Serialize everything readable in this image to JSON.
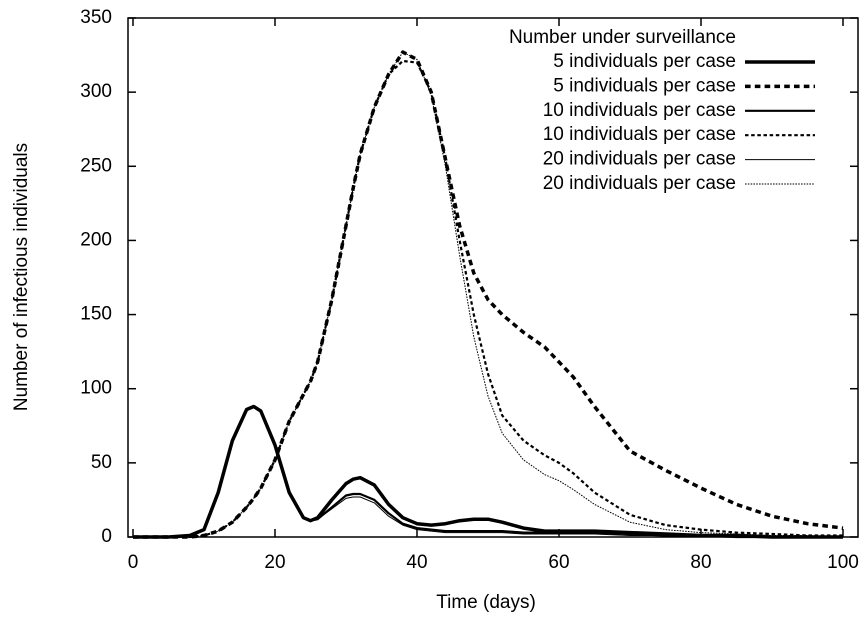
{
  "chart_data": {
    "type": "line",
    "xlabel": "Time (days)",
    "ylabel": "Number of infectious individuals",
    "legend_title": "Number under surveillance",
    "legend": "upper right",
    "xlim": [
      0,
      100
    ],
    "ylim": [
      0,
      350
    ],
    "xticks": [
      0,
      20,
      40,
      60,
      80,
      100
    ],
    "yticks": [
      0,
      50,
      100,
      150,
      200,
      250,
      300,
      350
    ],
    "x": [
      0,
      5,
      8,
      10,
      12,
      14,
      16,
      17,
      18,
      20,
      22,
      24,
      25,
      26,
      28,
      30,
      31,
      32,
      34,
      36,
      38,
      40,
      42,
      44,
      46,
      48,
      50,
      52,
      55,
      58,
      60,
      62,
      65,
      70,
      75,
      80,
      85,
      90,
      95,
      100
    ],
    "series": [
      {
        "name": "5 individuals per case",
        "color": "#000000",
        "linewidth": 3.5,
        "dashed": false,
        "values": [
          0,
          0,
          1,
          5,
          30,
          65,
          86,
          88,
          85,
          62,
          30,
          13,
          11,
          13,
          25,
          36,
          39,
          40,
          35,
          22,
          13,
          9,
          8,
          9,
          11,
          12,
          12,
          10,
          6,
          4,
          4,
          4,
          4,
          3,
          2,
          1,
          1,
          0,
          0,
          0
        ]
      },
      {
        "name": "5 individuals per case",
        "color": "#000000",
        "linewidth": 3.5,
        "dashed": true,
        "values": [
          0,
          0,
          0,
          1,
          4,
          10,
          20,
          26,
          33,
          52,
          78,
          96,
          105,
          118,
          160,
          210,
          235,
          258,
          290,
          312,
          327,
          322,
          300,
          255,
          210,
          178,
          160,
          150,
          138,
          128,
          118,
          108,
          88,
          58,
          45,
          33,
          22,
          14,
          9,
          6
        ]
      },
      {
        "name": "10 individuals per case",
        "color": "#000000",
        "linewidth": 2.2,
        "dashed": false,
        "values": [
          0,
          0,
          1,
          5,
          30,
          65,
          86,
          88,
          85,
          62,
          30,
          13,
          11,
          12,
          20,
          28,
          29,
          29,
          25,
          16,
          9,
          6,
          5,
          4,
          4,
          4,
          4,
          4,
          3,
          3,
          3,
          3,
          3,
          2,
          1,
          1,
          0,
          0,
          0,
          0
        ]
      },
      {
        "name": "10 individuals per case",
        "color": "#000000",
        "linewidth": 2.2,
        "dashed": true,
        "values": [
          0,
          0,
          0,
          1,
          4,
          10,
          20,
          26,
          33,
          52,
          78,
          96,
          105,
          118,
          160,
          210,
          235,
          258,
          290,
          312,
          321,
          320,
          300,
          255,
          200,
          150,
          110,
          82,
          65,
          55,
          50,
          43,
          30,
          15,
          8,
          5,
          3,
          2,
          1,
          1
        ]
      },
      {
        "name": "20 individuals per case",
        "color": "#000000",
        "linewidth": 1,
        "dashed": false,
        "values": [
          0,
          0,
          1,
          5,
          30,
          65,
          86,
          88,
          85,
          62,
          30,
          13,
          11,
          12,
          19,
          26,
          27,
          27,
          23,
          14,
          8,
          5,
          4,
          3,
          3,
          3,
          3,
          3,
          2,
          2,
          2,
          2,
          2,
          1,
          1,
          0,
          0,
          0,
          0,
          0
        ]
      },
      {
        "name": "20 individuals per case",
        "color": "#000000",
        "linewidth": 1,
        "dashed": true,
        "values": [
          0,
          0,
          0,
          1,
          4,
          10,
          20,
          26,
          33,
          52,
          78,
          96,
          105,
          118,
          160,
          210,
          235,
          258,
          290,
          312,
          327,
          322,
          298,
          250,
          190,
          135,
          95,
          70,
          52,
          42,
          38,
          32,
          22,
          10,
          5,
          3,
          2,
          1,
          1,
          0
        ]
      }
    ]
  }
}
